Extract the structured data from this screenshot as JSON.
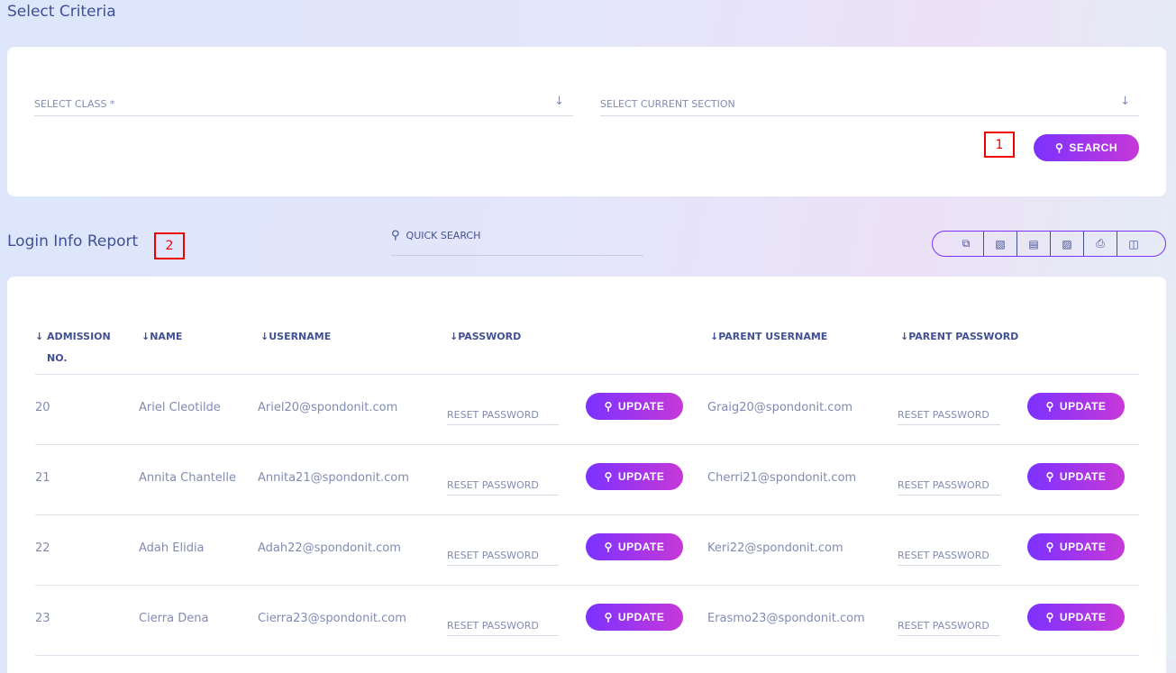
{
  "criteria": {
    "title": "Select Criteria",
    "class_placeholder": "SELECT CLASS *",
    "section_placeholder": "SELECT CURRENT SECTION",
    "search_label": "SEARCH"
  },
  "markers": [
    "1",
    "2"
  ],
  "report": {
    "title": "Login Info Report",
    "quick_search": "QUICK SEARCH",
    "export_icons": [
      "copy-icon",
      "excel-icon",
      "csv-icon",
      "pdf-icon",
      "print-icon",
      "columns-icon"
    ],
    "columns": [
      "ADMISSION NO.",
      "NAME",
      "USERNAME",
      "PASSWORD",
      "PARENT USERNAME",
      "PARENT PASSWORD"
    ],
    "reset_label": "RESET PASSWORD",
    "update_label": "UPDATE",
    "rows": [
      {
        "admission": "20",
        "name": "Ariel Cleotilde",
        "username": "Ariel20@spondonit.com",
        "parent_username": "Graig20@spondonit.com"
      },
      {
        "admission": "21",
        "name": "Annita Chantelle",
        "username": "Annita21@spondonit.com",
        "parent_username": "Cherri21@spondonit.com"
      },
      {
        "admission": "22",
        "name": "Adah Elidia",
        "username": "Adah22@spondonit.com",
        "parent_username": "Keri22@spondonit.com"
      },
      {
        "admission": "23",
        "name": "Cierra Dena",
        "username": "Cierra23@spondonit.com",
        "parent_username": "Erasmo23@spondonit.com"
      }
    ]
  },
  "colors": {
    "accent_start": "#7c32ff",
    "accent_end": "#c738d8",
    "text": "#415094",
    "muted": "#828bb2"
  }
}
